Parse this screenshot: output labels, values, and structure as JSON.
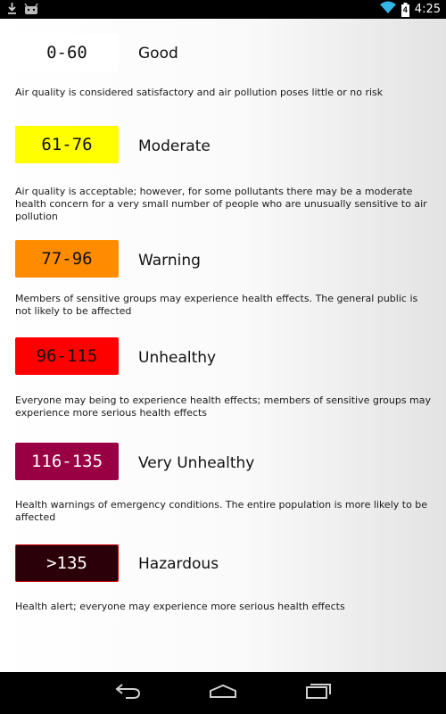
{
  "status_bar": {
    "time": "4:25",
    "battery_level": "4",
    "icons": [
      "download-icon",
      "android-icon",
      "wifi-icon",
      "battery-icon"
    ]
  },
  "levels": [
    {
      "range": "0-60",
      "category": "Good",
      "description": "Air quality is considered satisfactory and air pollution poses little or no risk",
      "color": "#ffffff",
      "text_color": "#111111"
    },
    {
      "range": "61-76",
      "category": "Moderate",
      "description": "Air quality is acceptable; however, for some pollutants there may be a moderate health concern for a very small number of people who are unusually sensitive to air pollution",
      "color": "#ffff00",
      "text_color": "#111111"
    },
    {
      "range": "77-96",
      "category": "Warning",
      "description": "Members of sensitive groups may experience health effects. The general public is not likely to be affected",
      "color": "#ff8c00",
      "text_color": "#111111"
    },
    {
      "range": "96-115",
      "category": "Unhealthy",
      "description": "Everyone may being to experience health effects; members of sensitive groups may experience more serious health effects",
      "color": "#ff0000",
      "text_color": "#111111"
    },
    {
      "range": "116-135",
      "category": "Very Unhealthy",
      "description": "Health warnings of emergency conditions. The entire population is more likely to be affected",
      "color": "#990044",
      "text_color": "#ffffff"
    },
    {
      "range": ">135",
      "category": "Hazardous",
      "description": "Health alert; everyone may experience more serious health effects",
      "color": "#2b0008",
      "text_color": "#ffffff"
    }
  ],
  "nav_bar": {
    "buttons": [
      "back-icon",
      "home-icon",
      "recent-apps-icon"
    ]
  }
}
